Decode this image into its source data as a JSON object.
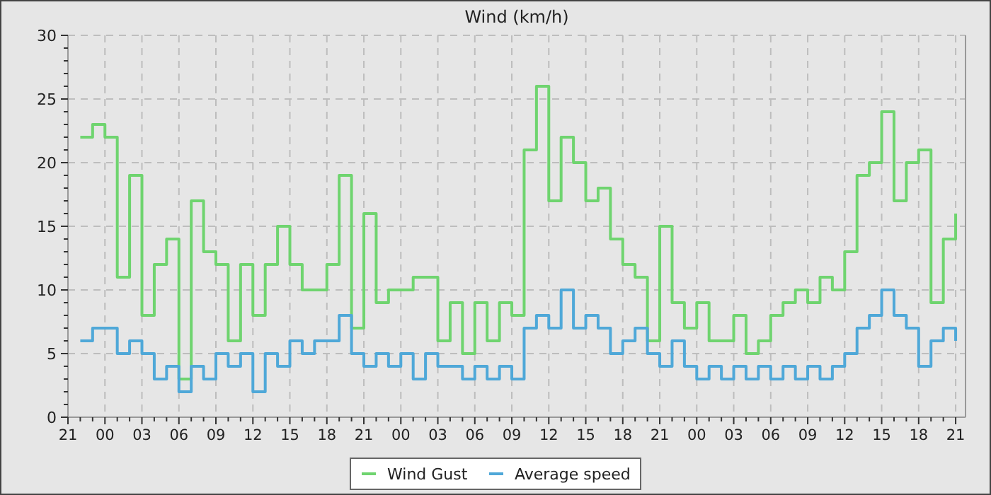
{
  "chart_data": {
    "type": "step",
    "title": "Wind (km/h)",
    "categories": [
      "21",
      null,
      null,
      "00",
      null,
      null,
      "03",
      null,
      null,
      "06",
      null,
      null,
      "09",
      null,
      null,
      "12",
      null,
      null,
      "15",
      null,
      null,
      "18",
      null,
      null,
      "21",
      null,
      null,
      "00",
      null,
      null,
      "03",
      null,
      null,
      "06",
      null,
      null,
      "09",
      null,
      null,
      "12",
      null,
      null,
      "15",
      null,
      null,
      "18",
      null,
      null,
      "21",
      null,
      null,
      "00",
      null,
      null,
      "03",
      null,
      null,
      "06",
      null,
      null,
      "09",
      null,
      null,
      "12",
      null,
      null,
      "15",
      null,
      null,
      "18",
      null,
      null,
      "21"
    ],
    "ylim": [
      0,
      30
    ],
    "yticks": [
      0,
      {
        "value": 1,
        "label": null
      },
      {
        "value": 2,
        "label": null
      },
      {
        "value": 3,
        "label": null
      },
      {
        "value": 4,
        "label": null
      },
      5,
      {
        "value": 6,
        "label": null
      },
      {
        "value": 7,
        "label": null
      },
      {
        "value": 8,
        "label": null
      },
      {
        "value": 9,
        "label": null
      },
      10,
      {
        "value": 11,
        "label": null
      },
      {
        "value": 12,
        "label": null
      },
      {
        "value": 13,
        "label": null
      },
      {
        "value": 14,
        "label": null
      },
      15,
      {
        "value": 16,
        "label": null
      },
      {
        "value": 17,
        "label": null
      },
      {
        "value": 18,
        "label": null
      },
      {
        "value": 19,
        "label": null
      },
      20,
      {
        "value": 21,
        "label": null
      },
      {
        "value": 22,
        "label": null
      },
      {
        "value": 23,
        "label": null
      },
      {
        "value": 24,
        "label": null
      },
      25,
      {
        "value": 26,
        "label": null
      },
      {
        "value": 27,
        "label": null
      },
      {
        "value": 28,
        "label": null
      },
      {
        "value": 29,
        "label": null
      },
      30
    ],
    "grid": true,
    "legend": "bottom",
    "line_style": "solid",
    "series": [
      {
        "name": "Wind Gust",
        "color": "#6fd46f",
        "values": [
          null,
          22,
          23,
          22,
          11,
          19,
          8,
          12,
          14,
          3,
          17,
          13,
          12,
          6,
          12,
          8,
          12,
          15,
          12,
          10,
          10,
          12,
          19,
          7,
          16,
          9,
          10,
          10,
          11,
          11,
          6,
          9,
          5,
          9,
          6,
          9,
          8,
          21,
          26,
          17,
          22,
          20,
          17,
          18,
          14,
          12,
          11,
          6,
          15,
          9,
          7,
          9,
          6,
          6,
          8,
          5,
          6,
          8,
          9,
          10,
          9,
          11,
          10,
          13,
          19,
          20,
          24,
          17,
          20,
          21,
          9,
          14,
          16
        ]
      },
      {
        "name": "Average speed",
        "color": "#4fa8d8",
        "values": [
          null,
          6,
          7,
          7,
          5,
          6,
          5,
          3,
          4,
          2,
          4,
          3,
          5,
          4,
          5,
          2,
          5,
          4,
          6,
          5,
          6,
          6,
          8,
          5,
          4,
          5,
          4,
          5,
          3,
          5,
          4,
          4,
          3,
          4,
          3,
          4,
          3,
          7,
          8,
          7,
          10,
          7,
          8,
          7,
          5,
          6,
          7,
          5,
          4,
          6,
          4,
          3,
          4,
          3,
          4,
          3,
          4,
          3,
          4,
          3,
          4,
          3,
          4,
          5,
          7,
          8,
          10,
          8,
          7,
          4,
          6,
          7,
          6
        ]
      }
    ]
  }
}
